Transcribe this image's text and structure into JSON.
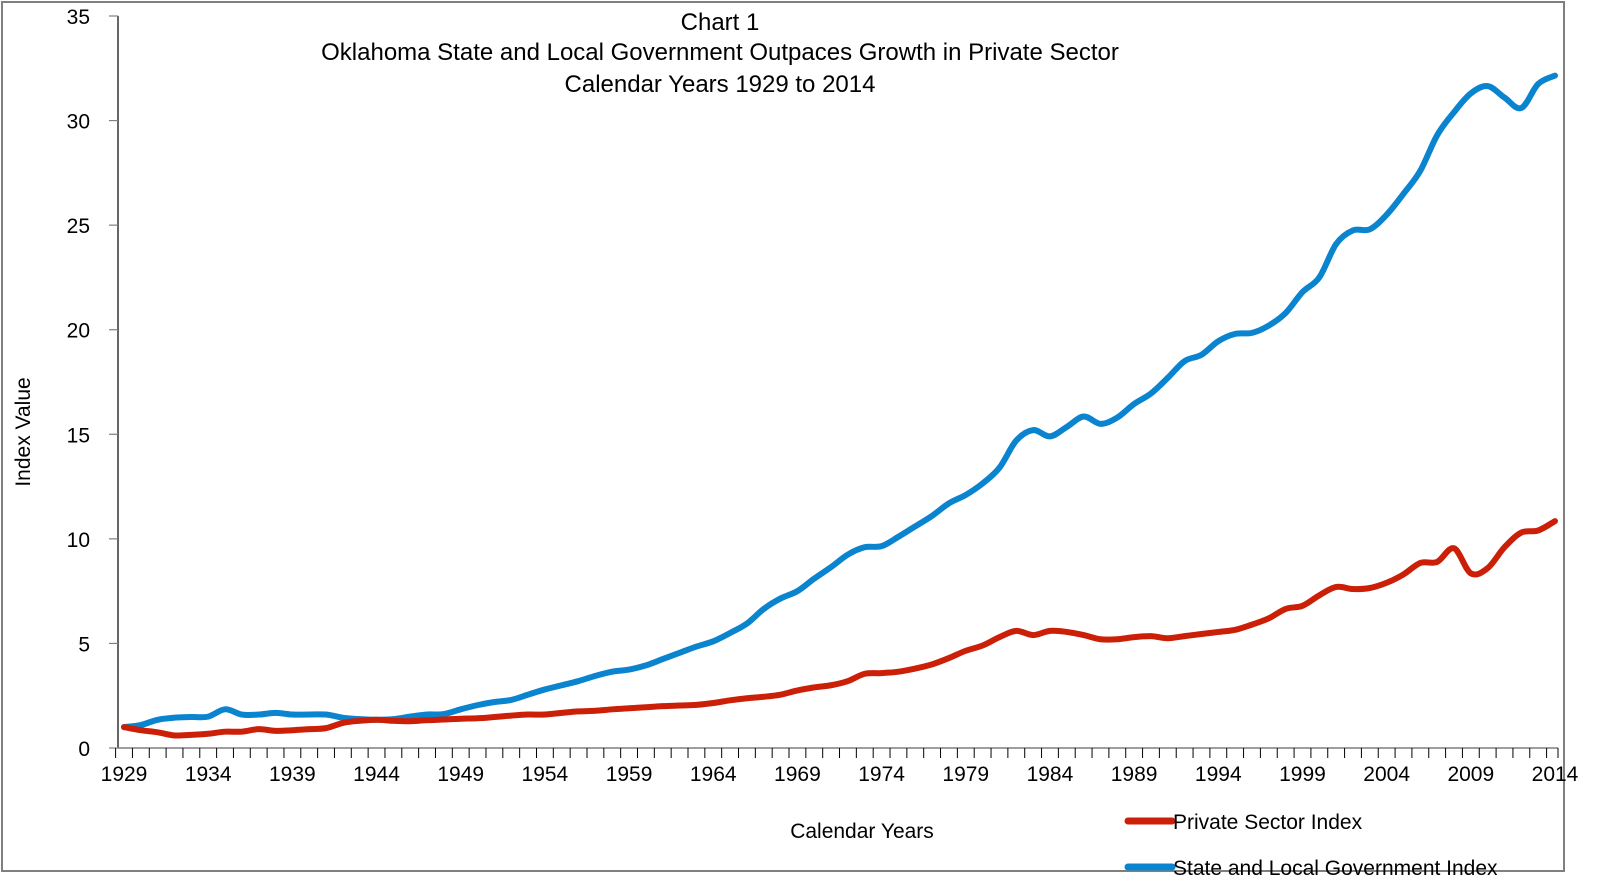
{
  "chart_data": {
    "type": "line",
    "title": "Chart 1",
    "subtitle_lines": [
      "Oklahoma State and Local Government Outpaces Growth in Private Sector",
      "Calendar Years 1929 to 2014"
    ],
    "xlabel": "Calendar Years",
    "ylabel": "Index Value",
    "ylim": [
      0,
      35
    ],
    "yticks": [
      0,
      5,
      10,
      15,
      20,
      25,
      30,
      35
    ],
    "xlim": [
      1929,
      2014
    ],
    "xtick_labels": [
      "1929",
      "1934",
      "1939",
      "1944",
      "1949",
      "1954",
      "1959",
      "1964",
      "1969",
      "1974",
      "1979",
      "1984",
      "1989",
      "1994",
      "1999",
      "2004",
      "2009",
      "2014"
    ],
    "grid": false,
    "legend_position": "bottom-right",
    "x": [
      1929,
      1930,
      1931,
      1932,
      1933,
      1934,
      1935,
      1936,
      1937,
      1938,
      1939,
      1940,
      1941,
      1942,
      1943,
      1944,
      1945,
      1946,
      1947,
      1948,
      1949,
      1950,
      1951,
      1952,
      1953,
      1954,
      1955,
      1956,
      1957,
      1958,
      1959,
      1960,
      1961,
      1962,
      1963,
      1964,
      1965,
      1966,
      1967,
      1968,
      1969,
      1970,
      1971,
      1972,
      1973,
      1974,
      1975,
      1976,
      1977,
      1978,
      1979,
      1980,
      1981,
      1982,
      1983,
      1984,
      1985,
      1986,
      1987,
      1988,
      1989,
      1990,
      1991,
      1992,
      1993,
      1994,
      1995,
      1996,
      1997,
      1998,
      1999,
      2000,
      2001,
      2002,
      2003,
      2004,
      2005,
      2006,
      2007,
      2008,
      2009,
      2010,
      2011,
      2012,
      2013,
      2014
    ],
    "series": [
      {
        "name": "Private Sector Index",
        "color": "#cc1f08",
        "values": [
          1.0,
          0.85,
          0.75,
          0.6,
          0.63,
          0.68,
          0.78,
          0.78,
          0.9,
          0.82,
          0.85,
          0.9,
          0.95,
          1.2,
          1.3,
          1.35,
          1.3,
          1.28,
          1.33,
          1.36,
          1.4,
          1.42,
          1.48,
          1.55,
          1.6,
          1.6,
          1.68,
          1.75,
          1.78,
          1.85,
          1.9,
          1.95,
          2.0,
          2.03,
          2.06,
          2.15,
          2.28,
          2.38,
          2.45,
          2.55,
          2.75,
          2.9,
          3.0,
          3.2,
          3.55,
          3.58,
          3.65,
          3.8,
          4.0,
          4.3,
          4.65,
          4.9,
          5.3,
          5.6,
          5.4,
          5.6,
          5.55,
          5.4,
          5.2,
          5.2,
          5.3,
          5.35,
          5.25,
          5.35,
          5.45,
          5.55,
          5.65,
          5.9,
          6.2,
          6.65,
          6.8,
          7.3,
          7.7,
          7.6,
          7.65,
          7.9,
          8.3,
          8.85,
          8.9,
          9.55,
          8.35,
          8.6,
          9.6,
          10.3,
          10.4,
          10.85
        ]
      },
      {
        "name": "State and Local Government Index",
        "color": "#0a84cf",
        "values": [
          1.0,
          1.1,
          1.35,
          1.45,
          1.48,
          1.5,
          1.85,
          1.6,
          1.6,
          1.68,
          1.6,
          1.6,
          1.6,
          1.45,
          1.38,
          1.35,
          1.38,
          1.5,
          1.6,
          1.62,
          1.85,
          2.05,
          2.2,
          2.3,
          2.55,
          2.8,
          3.0,
          3.2,
          3.45,
          3.65,
          3.75,
          3.95,
          4.25,
          4.55,
          4.85,
          5.1,
          5.5,
          5.95,
          6.65,
          7.15,
          7.5,
          8.1,
          8.65,
          9.25,
          9.6,
          9.65,
          10.1,
          10.6,
          11.1,
          11.7,
          12.1,
          12.65,
          13.4,
          14.7,
          15.2,
          14.9,
          15.35,
          15.85,
          15.5,
          15.8,
          16.45,
          16.95,
          17.7,
          18.5,
          18.8,
          19.45,
          19.8,
          19.85,
          20.2,
          20.8,
          21.8,
          22.5,
          24.1,
          24.75,
          24.8,
          25.5,
          26.5,
          27.6,
          29.3,
          30.4,
          31.3,
          31.65,
          31.1,
          30.6,
          31.75,
          32.15
        ]
      }
    ]
  }
}
